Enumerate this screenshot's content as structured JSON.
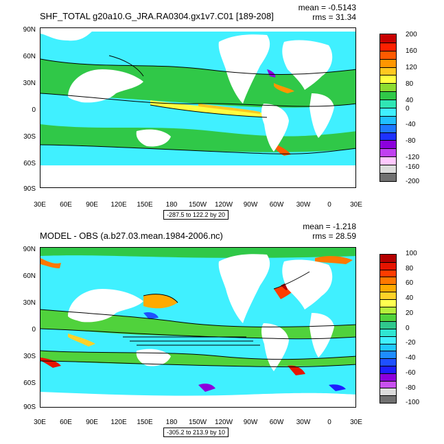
{
  "panels": [
    {
      "title": "SHF_TOTAL g20a10.G_JRA.RA0304.gx1v7.C01 [189-208]",
      "mean": "mean = -0.5143",
      "rms": "rms = 31.34",
      "range_label": "-287.5 to 122.2 by 20",
      "y_ticks": [
        "90N",
        "60N",
        "30N",
        "0",
        "30S",
        "60S",
        "90S"
      ],
      "x_ticks": [
        "30E",
        "60E",
        "90E",
        "120E",
        "150E",
        "180",
        "150W",
        "120W",
        "90W",
        "60W",
        "30W",
        "0",
        "30E"
      ],
      "colorbar_labels": [
        "200",
        "160",
        "120",
        "80",
        "40",
        "0",
        "-40",
        "-80",
        "-120",
        "-160",
        "-200"
      ],
      "colorbar_colors": [
        "#c80000",
        "#ff2000",
        "#ff5a00",
        "#ff9600",
        "#ffc820",
        "#ffff40",
        "#8cdc30",
        "#30c848",
        "#30e6b4",
        "#40f0ff",
        "#20c0ff",
        "#1e78ff",
        "#1e32ff",
        "#8c00dc",
        "#c040f0",
        "#ffc8ff",
        "#dcdcdc",
        "#707070"
      ]
    },
    {
      "title": "MODEL - OBS (a.b27.03.mean.1984-2006.nc)",
      "mean": "mean = -1.218",
      "rms": "rms = 28.59",
      "range_label": "-305.2 to 213.9 by 10",
      "y_ticks": [
        "90N",
        "60N",
        "30N",
        "0",
        "30S",
        "60S",
        "90S"
      ],
      "x_ticks": [
        "30E",
        "60E",
        "90E",
        "120E",
        "150E",
        "180",
        "150W",
        "120W",
        "90W",
        "60W",
        "30W",
        "0",
        "30E"
      ],
      "colorbar_labels": [
        "100",
        "80",
        "60",
        "40",
        "20",
        "0",
        "-20",
        "-40",
        "-60",
        "-80",
        "-100"
      ],
      "colorbar_colors": [
        "#b40000",
        "#e61400",
        "#ff3c00",
        "#ff7800",
        "#ffaa00",
        "#ffd228",
        "#ffff50",
        "#b4f03c",
        "#50d23c",
        "#30c88c",
        "#30e6d2",
        "#40f0ff",
        "#20c8ff",
        "#1e8cff",
        "#1e50ff",
        "#1e1eff",
        "#8c00dc",
        "#c850f0",
        "#dcdcdc",
        "#707070"
      ]
    }
  ]
}
